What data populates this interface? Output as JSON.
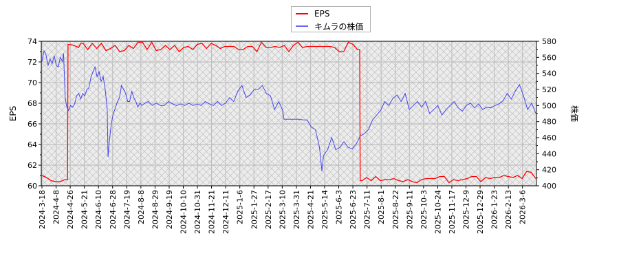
{
  "chart_data": {
    "type": "line",
    "title": "",
    "legend": {
      "position": "top-center",
      "entries": [
        {
          "label": "EPS",
          "color": "#ff0000"
        },
        {
          "label": "キムラの株価",
          "color": "#4444ee"
        }
      ]
    },
    "xlabel": "",
    "ylabel_left": "EPS",
    "ylabel_right": "株価",
    "ylim_left": [
      60,
      74
    ],
    "ylim_right": [
      400,
      580
    ],
    "yticks_left": [
      60,
      62,
      64,
      66,
      68,
      70,
      72,
      74
    ],
    "yticks_right": [
      400,
      420,
      440,
      460,
      480,
      500,
      520,
      540,
      560,
      580
    ],
    "grid": true,
    "background": "hatched light gray",
    "x_tick_labels": [
      "2024-3-18",
      "2024-4-8",
      "2024-4-26",
      "2024-5-21",
      "2024-6-10",
      "2024-6-28",
      "2024-7-19",
      "2024-8-8",
      "2024-8-29",
      "2024-9-19",
      "2024-10-10",
      "2024-10-31",
      "2024-11-21",
      "2024-12-11",
      "2025-1-6",
      "2025-1-27",
      "2025-2-17",
      "2025-3-10",
      "2025-3-31",
      "2025-4-21",
      "2025-5-14",
      "2025-6-3",
      "2025-6-23",
      "2025-7-11",
      "2025-8-1",
      "2025-8-22",
      "2025-9-11",
      "2025-10-3",
      "2025-10-24",
      "2025-11-17",
      "2025-12-9",
      "2025-12-29",
      "2026-1-23",
      "2026-2-13",
      "2026-3-6"
    ],
    "series": [
      {
        "name": "EPS",
        "axis": "left",
        "color": "#ff0000",
        "points": [
          [
            0,
            61.0
          ],
          [
            1,
            60.8
          ],
          [
            2,
            60.5
          ],
          [
            3,
            60.4
          ],
          [
            4,
            60.4
          ],
          [
            5,
            60.6
          ],
          [
            5.6,
            60.6
          ],
          [
            5.7,
            73.7
          ],
          [
            6,
            73.7
          ],
          [
            7,
            73.6
          ],
          [
            8,
            73.4
          ],
          [
            8.5,
            73.8
          ],
          [
            9,
            73.8
          ],
          [
            10,
            73.2
          ],
          [
            11,
            73.8
          ],
          [
            12,
            73.3
          ],
          [
            13,
            73.8
          ],
          [
            14,
            73.1
          ],
          [
            15,
            73.3
          ],
          [
            16,
            73.6
          ],
          [
            17,
            73.0
          ],
          [
            18,
            73.1
          ],
          [
            19,
            73.6
          ],
          [
            20,
            73.3
          ],
          [
            21,
            73.9
          ],
          [
            22,
            73.9
          ],
          [
            23,
            73.2
          ],
          [
            24,
            73.9
          ],
          [
            25,
            73.1
          ],
          [
            26,
            73.2
          ],
          [
            27,
            73.6
          ],
          [
            28,
            73.2
          ],
          [
            29,
            73.6
          ],
          [
            30,
            73.0
          ],
          [
            31,
            73.4
          ],
          [
            32,
            73.5
          ],
          [
            33,
            73.2
          ],
          [
            34,
            73.7
          ],
          [
            35,
            73.8
          ],
          [
            36,
            73.3
          ],
          [
            37,
            73.8
          ],
          [
            38,
            73.6
          ],
          [
            39,
            73.3
          ],
          [
            40,
            73.5
          ],
          [
            41,
            73.5
          ],
          [
            42,
            73.5
          ],
          [
            43,
            73.2
          ],
          [
            44,
            73.2
          ],
          [
            45,
            73.5
          ],
          [
            46,
            73.5
          ],
          [
            47,
            73.0
          ],
          [
            48,
            73.9
          ],
          [
            49,
            73.4
          ],
          [
            50,
            73.4
          ],
          [
            51,
            73.5
          ],
          [
            52,
            73.4
          ],
          [
            53,
            73.6
          ],
          [
            54,
            73.0
          ],
          [
            55,
            73.6
          ],
          [
            56,
            73.9
          ],
          [
            57,
            73.4
          ],
          [
            58,
            73.5
          ],
          [
            59,
            73.5
          ],
          [
            60,
            73.5
          ],
          [
            61,
            73.5
          ],
          [
            62,
            73.5
          ],
          [
            63,
            73.5
          ],
          [
            64,
            73.4
          ],
          [
            65,
            73.0
          ],
          [
            66,
            73.0
          ],
          [
            67,
            73.9
          ],
          [
            68,
            73.7
          ],
          [
            69,
            73.2
          ],
          [
            69.5,
            73.2
          ],
          [
            69.6,
            60.5
          ],
          [
            70,
            60.5
          ],
          [
            71,
            60.8
          ],
          [
            72,
            60.5
          ],
          [
            73,
            60.9
          ],
          [
            74,
            60.5
          ],
          [
            75,
            60.6
          ],
          [
            76,
            60.6
          ],
          [
            77,
            60.7
          ],
          [
            78,
            60.5
          ],
          [
            79,
            60.4
          ],
          [
            80,
            60.6
          ],
          [
            81,
            60.4
          ],
          [
            82,
            60.3
          ],
          [
            83,
            60.6
          ],
          [
            84,
            60.7
          ],
          [
            85,
            60.7
          ],
          [
            86,
            60.7
          ],
          [
            87,
            60.9
          ],
          [
            88,
            60.9
          ],
          [
            89,
            60.3
          ],
          [
            90,
            60.6
          ],
          [
            91,
            60.5
          ],
          [
            92,
            60.6
          ],
          [
            93,
            60.7
          ],
          [
            94,
            60.9
          ],
          [
            95,
            60.9
          ],
          [
            96,
            60.4
          ],
          [
            97,
            60.8
          ],
          [
            98,
            60.7
          ],
          [
            99,
            60.8
          ],
          [
            100,
            60.8
          ],
          [
            101,
            61.0
          ],
          [
            102,
            60.9
          ],
          [
            103,
            60.8
          ],
          [
            104,
            61.0
          ],
          [
            105,
            60.7
          ],
          [
            106,
            61.4
          ],
          [
            107,
            61.3
          ],
          [
            108,
            60.7
          ]
        ]
      },
      {
        "name": "キムラの株価",
        "axis": "right",
        "color": "#4444ee",
        "points": [
          [
            0,
            555
          ],
          [
            0.5,
            568
          ],
          [
            1,
            563
          ],
          [
            1.5,
            550
          ],
          [
            2,
            558
          ],
          [
            2.5,
            552
          ],
          [
            3,
            562
          ],
          [
            3.5,
            550
          ],
          [
            4,
            548
          ],
          [
            4.5,
            560
          ],
          [
            5,
            555
          ],
          [
            5.3,
            565
          ],
          [
            5.7,
            510
          ],
          [
            6,
            500
          ],
          [
            6.5,
            494
          ],
          [
            7,
            500
          ],
          [
            7.5,
            498
          ],
          [
            8,
            502
          ],
          [
            8.5,
            512
          ],
          [
            9,
            515
          ],
          [
            9.5,
            508
          ],
          [
            10,
            515
          ],
          [
            10.5,
            512
          ],
          [
            11,
            520
          ],
          [
            11.5,
            522
          ],
          [
            12,
            535
          ],
          [
            12.5,
            542
          ],
          [
            13,
            548
          ],
          [
            13.5,
            536
          ],
          [
            14,
            542
          ],
          [
            14.5,
            530
          ],
          [
            15,
            536
          ],
          [
            15.5,
            520
          ],
          [
            16,
            495
          ],
          [
            16.2,
            436
          ],
          [
            16.5,
            455
          ],
          [
            17,
            478
          ],
          [
            17.5,
            490
          ],
          [
            18,
            497
          ],
          [
            18.5,
            505
          ],
          [
            19,
            510
          ],
          [
            19.5,
            525
          ],
          [
            20,
            520
          ],
          [
            20.5,
            515
          ],
          [
            21,
            505
          ],
          [
            21.5,
            505
          ],
          [
            22,
            518
          ],
          [
            22.5,
            510
          ],
          [
            23,
            505
          ],
          [
            23.5,
            498
          ],
          [
            24,
            503
          ],
          [
            24.5,
            500
          ],
          [
            25,
            502
          ],
          [
            26,
            505
          ],
          [
            27,
            500
          ],
          [
            28,
            503
          ],
          [
            29,
            500
          ],
          [
            30,
            500
          ],
          [
            31,
            505
          ],
          [
            32,
            502
          ],
          [
            33,
            500
          ],
          [
            34,
            502
          ],
          [
            35,
            500
          ],
          [
            36,
            503
          ],
          [
            37,
            500
          ],
          [
            38,
            502
          ],
          [
            39,
            500
          ],
          [
            40,
            505
          ],
          [
            41,
            502
          ],
          [
            42,
            500
          ],
          [
            43,
            505
          ],
          [
            44,
            500
          ],
          [
            45,
            503
          ],
          [
            46,
            510
          ],
          [
            47,
            505
          ],
          [
            48,
            518
          ],
          [
            49,
            525
          ],
          [
            50,
            510
          ],
          [
            51,
            513
          ],
          [
            52,
            520
          ],
          [
            53,
            520
          ],
          [
            54,
            525
          ],
          [
            55,
            515
          ],
          [
            56,
            512
          ],
          [
            57,
            495
          ],
          [
            58,
            505
          ],
          [
            59,
            494
          ],
          [
            59.3,
            483
          ],
          [
            60,
            483
          ],
          [
            61,
            483
          ],
          [
            62,
            483
          ],
          [
            63,
            483
          ],
          [
            64,
            482
          ],
          [
            65,
            482
          ],
          [
            66,
            473
          ],
          [
            67,
            470
          ],
          [
            68,
            448
          ],
          [
            68.6,
            418
          ],
          [
            69,
            438
          ],
          [
            70,
            445
          ],
          [
            71,
            460
          ],
          [
            72,
            445
          ],
          [
            73,
            448
          ],
          [
            74,
            455
          ],
          [
            75,
            448
          ],
          [
            76,
            446
          ],
          [
            77,
            452
          ],
          [
            78,
            462
          ],
          [
            79,
            465
          ],
          [
            80,
            470
          ],
          [
            81,
            482
          ],
          [
            82,
            488
          ],
          [
            83,
            494
          ],
          [
            84,
            505
          ],
          [
            85,
            500
          ],
          [
            86,
            509
          ],
          [
            87,
            513
          ],
          [
            88,
            505
          ],
          [
            89,
            515
          ],
          [
            90,
            495
          ],
          [
            91,
            500
          ],
          [
            92,
            505
          ],
          [
            93,
            498
          ],
          [
            94,
            505
          ],
          [
            95,
            490
          ],
          [
            96,
            495
          ],
          [
            97,
            500
          ],
          [
            98,
            488
          ],
          [
            99,
            495
          ],
          [
            100,
            500
          ],
          [
            101,
            505
          ],
          [
            102,
            497
          ],
          [
            103,
            493
          ],
          [
            104,
            500
          ],
          [
            105,
            503
          ],
          [
            106,
            497
          ],
          [
            107,
            502
          ],
          [
            108,
            495
          ],
          [
            109,
            498
          ],
          [
            110,
            497
          ],
          [
            111,
            500
          ],
          [
            112,
            502
          ],
          [
            113,
            506
          ],
          [
            114,
            515
          ],
          [
            115,
            508
          ],
          [
            116,
            518
          ],
          [
            117,
            526
          ],
          [
            118,
            512
          ],
          [
            119,
            495
          ],
          [
            120,
            503
          ],
          [
            121,
            490
          ]
        ]
      }
    ]
  }
}
